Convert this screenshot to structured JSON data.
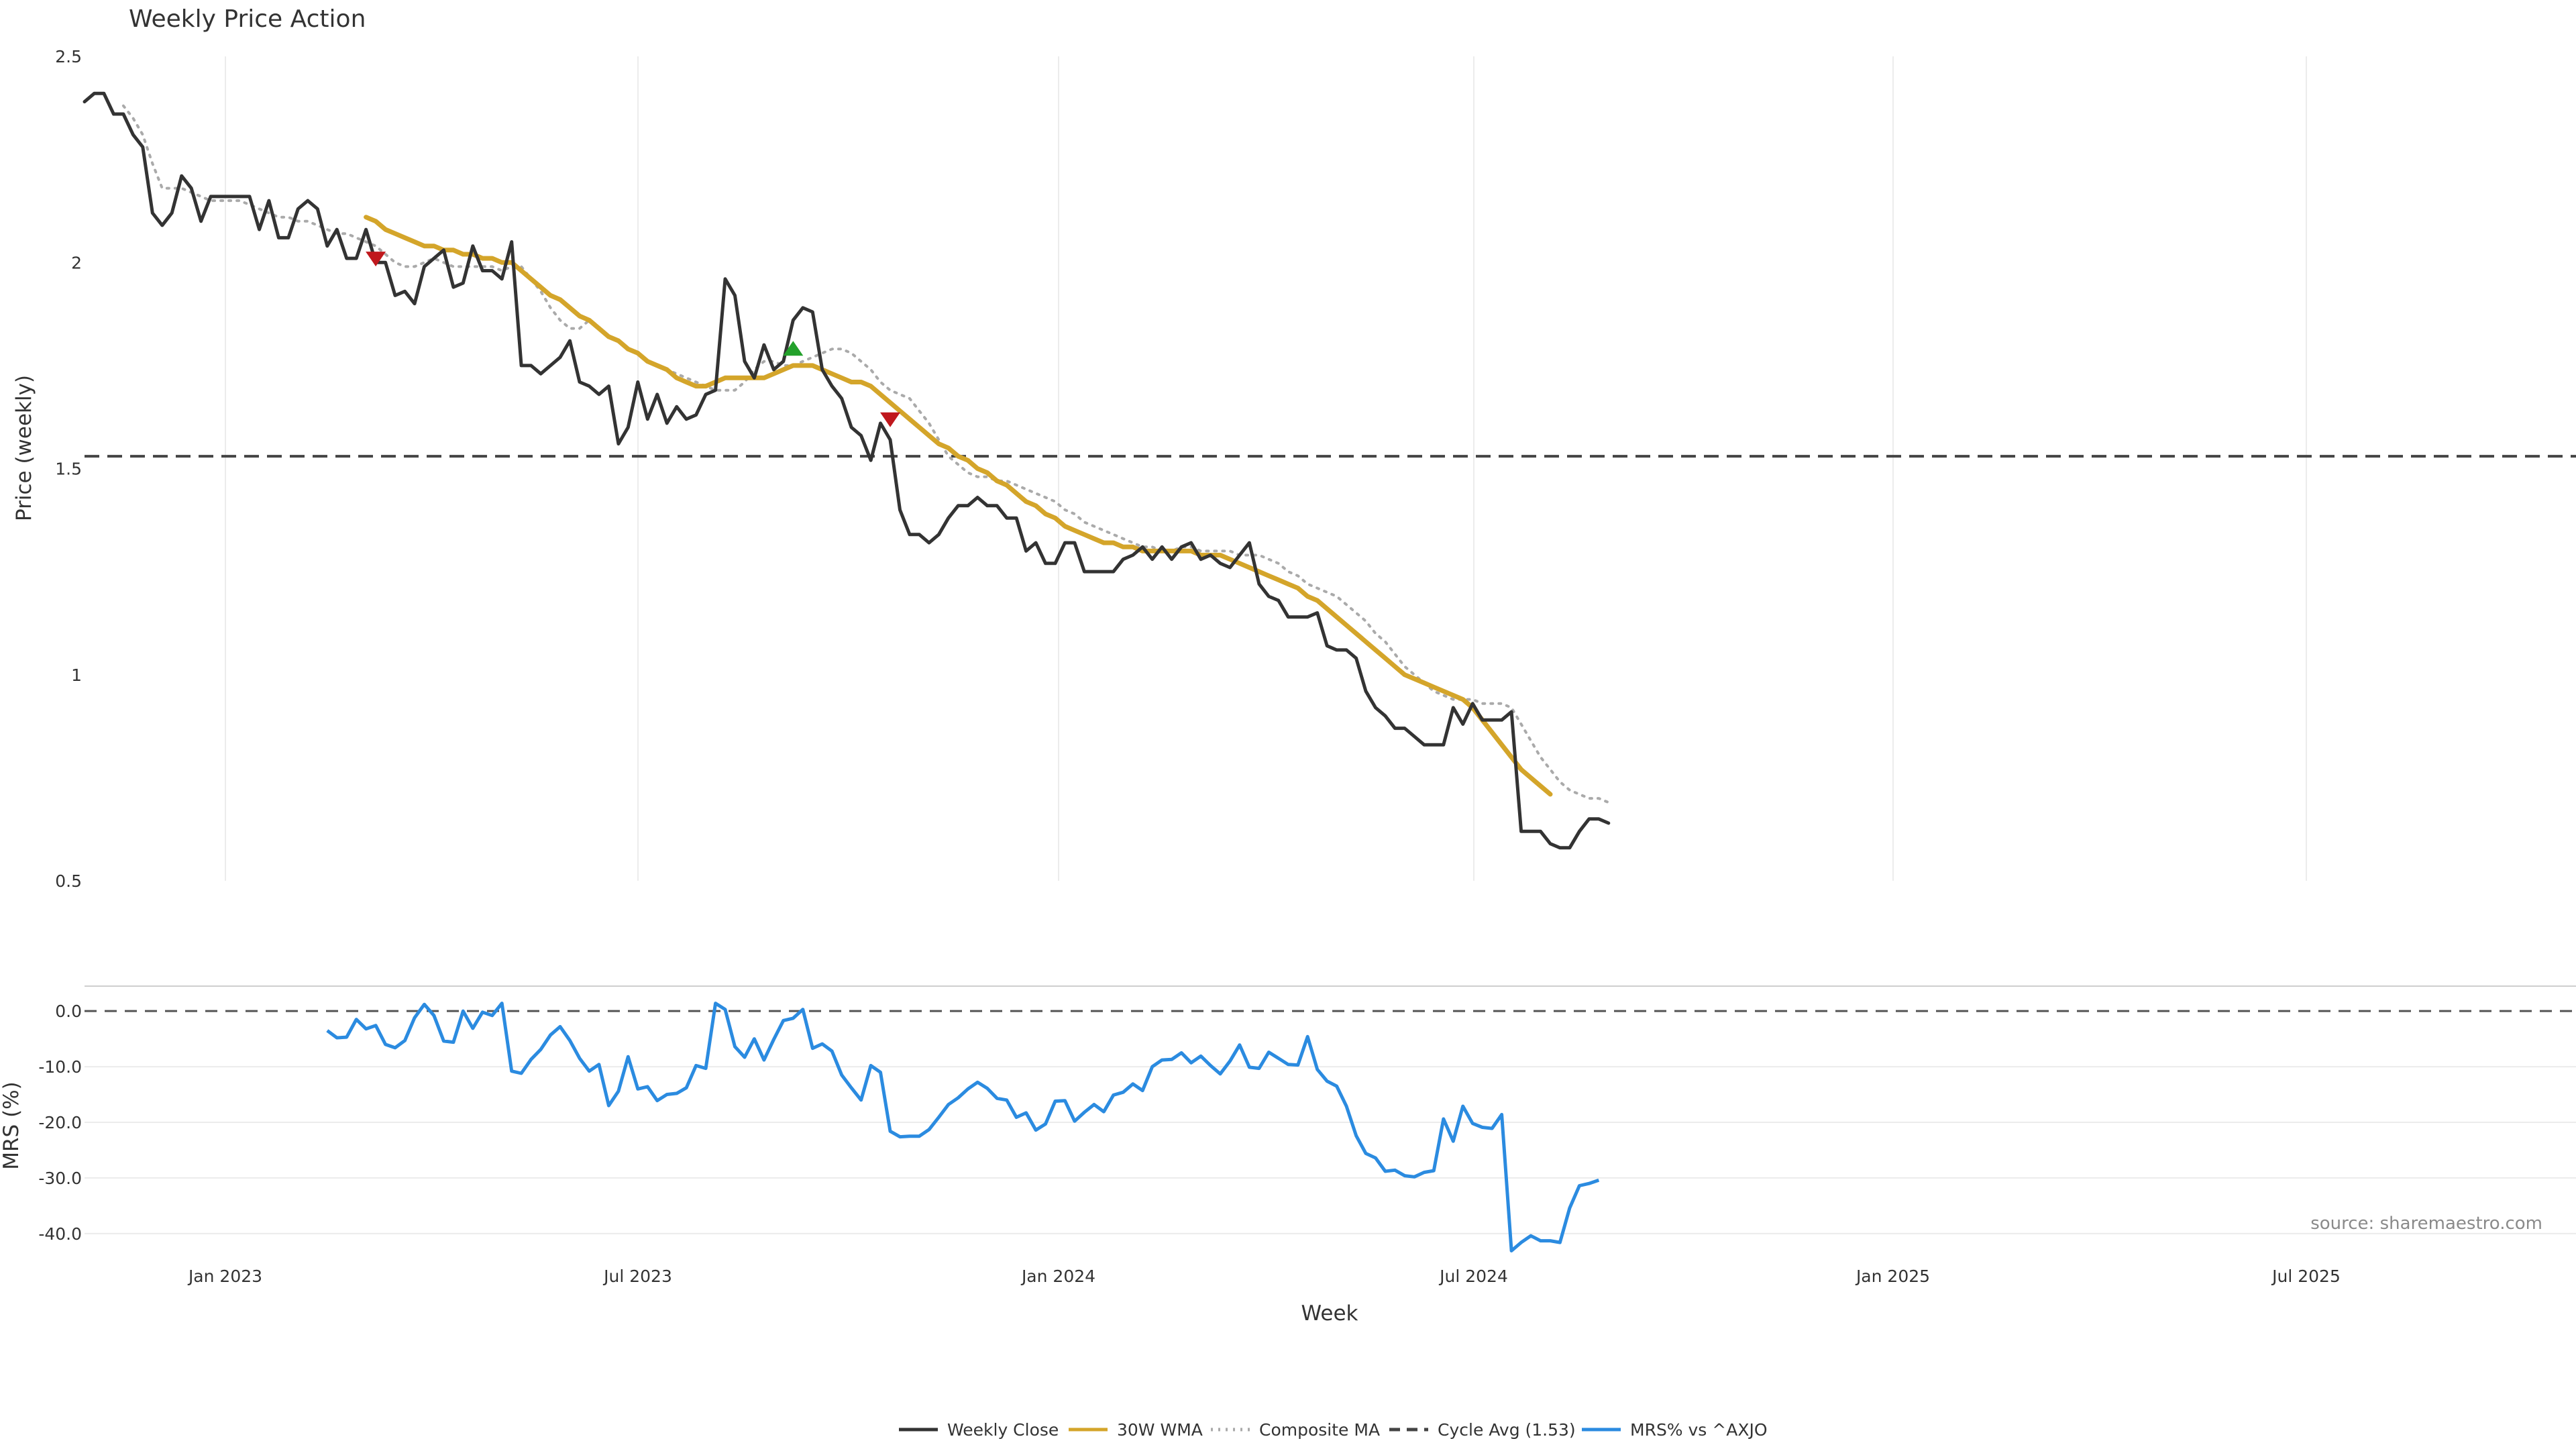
{
  "chart_data": {
    "type": "line",
    "title": "Weekly Price Action",
    "source": "source: sharemaestro.com",
    "xlabel": "Week",
    "x_ticks": [
      "Jan 2023",
      "Jul 2023",
      "Jan 2024",
      "Jul 2024",
      "Jan 2025",
      "Jul 2025"
    ],
    "price_panel": {
      "ylabel": "Price (weekly)",
      "ylim": [
        0.5,
        2.5
      ],
      "y_ticks": [
        "0.5",
        "1",
        "1.5",
        "2",
        "2.5"
      ],
      "cycle_avg": 1.53,
      "series": [
        {
          "name": "Weekly Close",
          "color": "#333333",
          "start_week": 0,
          "values": [
            2.39,
            2.41,
            2.41,
            2.36,
            2.36,
            2.31,
            2.28,
            2.12,
            2.09,
            2.12,
            2.21,
            2.18,
            2.1,
            2.16,
            2.16,
            2.16,
            2.16,
            2.16,
            2.08,
            2.15,
            2.06,
            2.06,
            2.13,
            2.15,
            2.13,
            2.04,
            2.08,
            2.01,
            2.01,
            2.08,
            2.0,
            2.0,
            1.92,
            1.93,
            1.9,
            1.99,
            2.01,
            2.03,
            1.94,
            1.95,
            2.04,
            1.98,
            1.98,
            1.96,
            2.05,
            1.75,
            1.75,
            1.73,
            1.75,
            1.77,
            1.81,
            1.71,
            1.7,
            1.68,
            1.7,
            1.56,
            1.6,
            1.71,
            1.62,
            1.68,
            1.61,
            1.65,
            1.62,
            1.63,
            1.68,
            1.69,
            1.96,
            1.92,
            1.76,
            1.72,
            1.8,
            1.74,
            1.76,
            1.86,
            1.89,
            1.88,
            1.74,
            1.7,
            1.67,
            1.6,
            1.58,
            1.52,
            1.61,
            1.57,
            1.4,
            1.34,
            1.34,
            1.32,
            1.34,
            1.38,
            1.41,
            1.41,
            1.43,
            1.41,
            1.41,
            1.38,
            1.38,
            1.3,
            1.32,
            1.27,
            1.27,
            1.32,
            1.32,
            1.25,
            1.25,
            1.25,
            1.25,
            1.28,
            1.29,
            1.31,
            1.28,
            1.31,
            1.28,
            1.31,
            1.32,
            1.28,
            1.29,
            1.27,
            1.26,
            1.29,
            1.32,
            1.22,
            1.19,
            1.18,
            1.14,
            1.14,
            1.14,
            1.15,
            1.07,
            1.06,
            1.06,
            1.04,
            0.96,
            0.92,
            0.9,
            0.87,
            0.87,
            0.85,
            0.83,
            0.83,
            0.83,
            0.92,
            0.88,
            0.93,
            0.89,
            0.89,
            0.89,
            0.91,
            0.62,
            0.62,
            0.62,
            0.59,
            0.58,
            0.58,
            0.62,
            0.65,
            0.65,
            0.64
          ]
        },
        {
          "name": "30W WMA",
          "color": "#d4a52a",
          "start_week": 29,
          "values": [
            2.11,
            2.1,
            2.08,
            2.07,
            2.06,
            2.05,
            2.04,
            2.04,
            2.03,
            2.03,
            2.02,
            2.02,
            2.01,
            2.01,
            2.0,
            2.0,
            1.98,
            1.96,
            1.94,
            1.92,
            1.91,
            1.89,
            1.87,
            1.86,
            1.84,
            1.82,
            1.81,
            1.79,
            1.78,
            1.76,
            1.75,
            1.74,
            1.72,
            1.71,
            1.7,
            1.7,
            1.71,
            1.72,
            1.72,
            1.72,
            1.72,
            1.72,
            1.73,
            1.74,
            1.75,
            1.75,
            1.75,
            1.74,
            1.73,
            1.72,
            1.71,
            1.71,
            1.7,
            1.68,
            1.66,
            1.64,
            1.62,
            1.6,
            1.58,
            1.56,
            1.55,
            1.53,
            1.52,
            1.5,
            1.49,
            1.47,
            1.46,
            1.44,
            1.42,
            1.41,
            1.39,
            1.38,
            1.36,
            1.35,
            1.34,
            1.33,
            1.32,
            1.32,
            1.31,
            1.31,
            1.3,
            1.3,
            1.3,
            1.3,
            1.3,
            1.3,
            1.29,
            1.29,
            1.29,
            1.28,
            1.27,
            1.26,
            1.25,
            1.24,
            1.23,
            1.22,
            1.21,
            1.19,
            1.18,
            1.16,
            1.14,
            1.12,
            1.1,
            1.08,
            1.06,
            1.04,
            1.02,
            1.0,
            0.99,
            0.98,
            0.97,
            0.96,
            0.95,
            0.94,
            0.92,
            0.89,
            0.86,
            0.83,
            0.8,
            0.77,
            0.75,
            0.73,
            0.71
          ]
        },
        {
          "name": "Composite MA",
          "color": "#aaaaaa",
          "start_week": 4,
          "values": [
            2.38,
            2.35,
            2.31,
            2.24,
            2.18,
            2.18,
            2.18,
            2.17,
            2.16,
            2.15,
            2.15,
            2.15,
            2.15,
            2.14,
            2.13,
            2.12,
            2.11,
            2.11,
            2.1,
            2.1,
            2.09,
            2.08,
            2.07,
            2.07,
            2.06,
            2.05,
            2.04,
            2.02,
            2.0,
            1.99,
            1.99,
            2.0,
            2.01,
            2.0,
            1.99,
            1.99,
            1.99,
            1.99,
            1.99,
            1.98,
            1.99,
            1.99,
            1.96,
            1.93,
            1.89,
            1.86,
            1.84,
            1.84,
            1.86,
            1.84,
            1.82,
            1.81,
            1.79,
            1.78,
            1.76,
            1.75,
            1.74,
            1.73,
            1.72,
            1.71,
            1.7,
            1.69,
            1.69,
            1.69,
            1.71,
            1.74,
            1.76,
            1.76,
            1.75,
            1.75,
            1.76,
            1.77,
            1.78,
            1.79,
            1.79,
            1.78,
            1.76,
            1.74,
            1.71,
            1.69,
            1.68,
            1.67,
            1.64,
            1.61,
            1.57,
            1.53,
            1.51,
            1.49,
            1.48,
            1.48,
            1.47,
            1.47,
            1.46,
            1.45,
            1.44,
            1.43,
            1.42,
            1.4,
            1.39,
            1.37,
            1.36,
            1.35,
            1.34,
            1.33,
            1.32,
            1.31,
            1.31,
            1.3,
            1.3,
            1.31,
            1.31,
            1.3,
            1.3,
            1.3,
            1.3,
            1.29,
            1.29,
            1.29,
            1.28,
            1.27,
            1.25,
            1.24,
            1.22,
            1.21,
            1.2,
            1.19,
            1.17,
            1.15,
            1.13,
            1.1,
            1.08,
            1.05,
            1.02,
            1.0,
            0.98,
            0.96,
            0.95,
            0.94,
            0.94,
            0.94,
            0.93,
            0.93,
            0.93,
            0.92,
            0.88,
            0.84,
            0.8,
            0.77,
            0.74,
            0.72,
            0.71,
            0.7,
            0.7,
            0.69
          ]
        }
      ],
      "markers": [
        {
          "type": "sell",
          "week": 30,
          "value": 2.01,
          "color": "#c0181d"
        },
        {
          "type": "buy",
          "week": 73,
          "value": 1.79,
          "color": "#23a12b"
        },
        {
          "type": "sell",
          "week": 83,
          "value": 1.62,
          "color": "#c0181d"
        }
      ]
    },
    "mrs_panel": {
      "ylabel": "MRS (%)",
      "ylim": [
        -44,
        4
      ],
      "y_ticks": [
        "0.0",
        "-10.0",
        "-20.0",
        "-30.0",
        "-40.0"
      ],
      "series": {
        "name": "MRS% vs ^AXJO",
        "color": "#2b8be0",
        "start_week": 25,
        "values": [
          -3.5,
          -4.8,
          -4.7,
          -1.5,
          -3.2,
          -2.6,
          -6.0,
          -6.6,
          -5.3,
          -1.2,
          1.2,
          -0.8,
          -5.4,
          -5.6,
          0.0,
          -3.1,
          -0.2,
          -0.8,
          1.4,
          -10.8,
          -11.2,
          -8.7,
          -6.9,
          -4.3,
          -2.8,
          -5.3,
          -8.5,
          -10.8,
          -9.6,
          -17.0,
          -14.4,
          -8.2,
          -14.0,
          -13.6,
          -16.1,
          -15.0,
          -14.8,
          -13.8,
          -9.8,
          -10.3,
          1.4,
          0.3,
          -6.4,
          -8.3,
          -5.0,
          -8.8,
          -5.1,
          -1.7,
          -1.3,
          0.3,
          -6.7,
          -5.9,
          -7.2,
          -11.5,
          -13.8,
          -16.0,
          -9.8,
          -11.0,
          -21.6,
          -22.6,
          -22.5,
          -22.5,
          -21.3,
          -19.1,
          -16.8,
          -15.6,
          -14.0,
          -12.8,
          -13.9,
          -15.7,
          -16.0,
          -19.1,
          -18.3,
          -21.4,
          -20.3,
          -16.2,
          -16.1,
          -19.8,
          -18.2,
          -16.8,
          -18.1,
          -15.1,
          -14.6,
          -13.1,
          -14.3,
          -10.0,
          -8.8,
          -8.7,
          -7.5,
          -9.3,
          -8.1,
          -9.8,
          -11.3,
          -9.0,
          -6.1,
          -10.1,
          -10.3,
          -7.4,
          -8.5,
          -9.6,
          -9.7,
          -4.6,
          -10.5,
          -12.6,
          -13.5,
          -17.1,
          -22.4,
          -25.6,
          -26.4,
          -28.8,
          -28.6,
          -29.6,
          -29.8,
          -29.0,
          -28.7,
          -19.4,
          -23.4,
          -17.1,
          -20.2,
          -20.9,
          -21.1,
          -18.6,
          -43.1,
          -41.6,
          -40.4,
          -41.3,
          -41.3,
          -41.6,
          -35.4,
          -31.4,
          -31.0,
          -30.4
        ]
      }
    },
    "legend": [
      {
        "name": "Weekly Close",
        "style": "solid",
        "color": "#333333"
      },
      {
        "name": "30W WMA",
        "style": "solid",
        "color": "#d4a52a"
      },
      {
        "name": "Composite MA",
        "style": "dotted",
        "color": "#aaaaaa"
      },
      {
        "name": "Cycle Avg (1.53)",
        "style": "dashed",
        "color": "#444444"
      },
      {
        "name": "MRS% vs ^AXJO",
        "style": "solid",
        "color": "#2b8be0"
      }
    ]
  }
}
